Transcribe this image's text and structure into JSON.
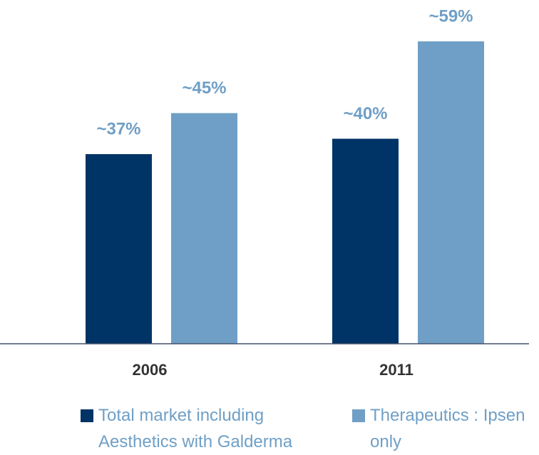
{
  "chart_data": {
    "type": "bar",
    "categories": [
      "2006",
      "2011"
    ],
    "series": [
      {
        "name": "Total market including Aesthetics with Galderma",
        "color": "#003366",
        "values": [
          37,
          40
        ],
        "value_labels": [
          "~37%",
          "~40%"
        ]
      },
      {
        "name": "Therapeutics : Ipsen only",
        "color": "#6f9fc6",
        "values": [
          45,
          59
        ],
        "value_labels": [
          "~45%",
          "~59%"
        ]
      }
    ],
    "legend": "bottom"
  }
}
